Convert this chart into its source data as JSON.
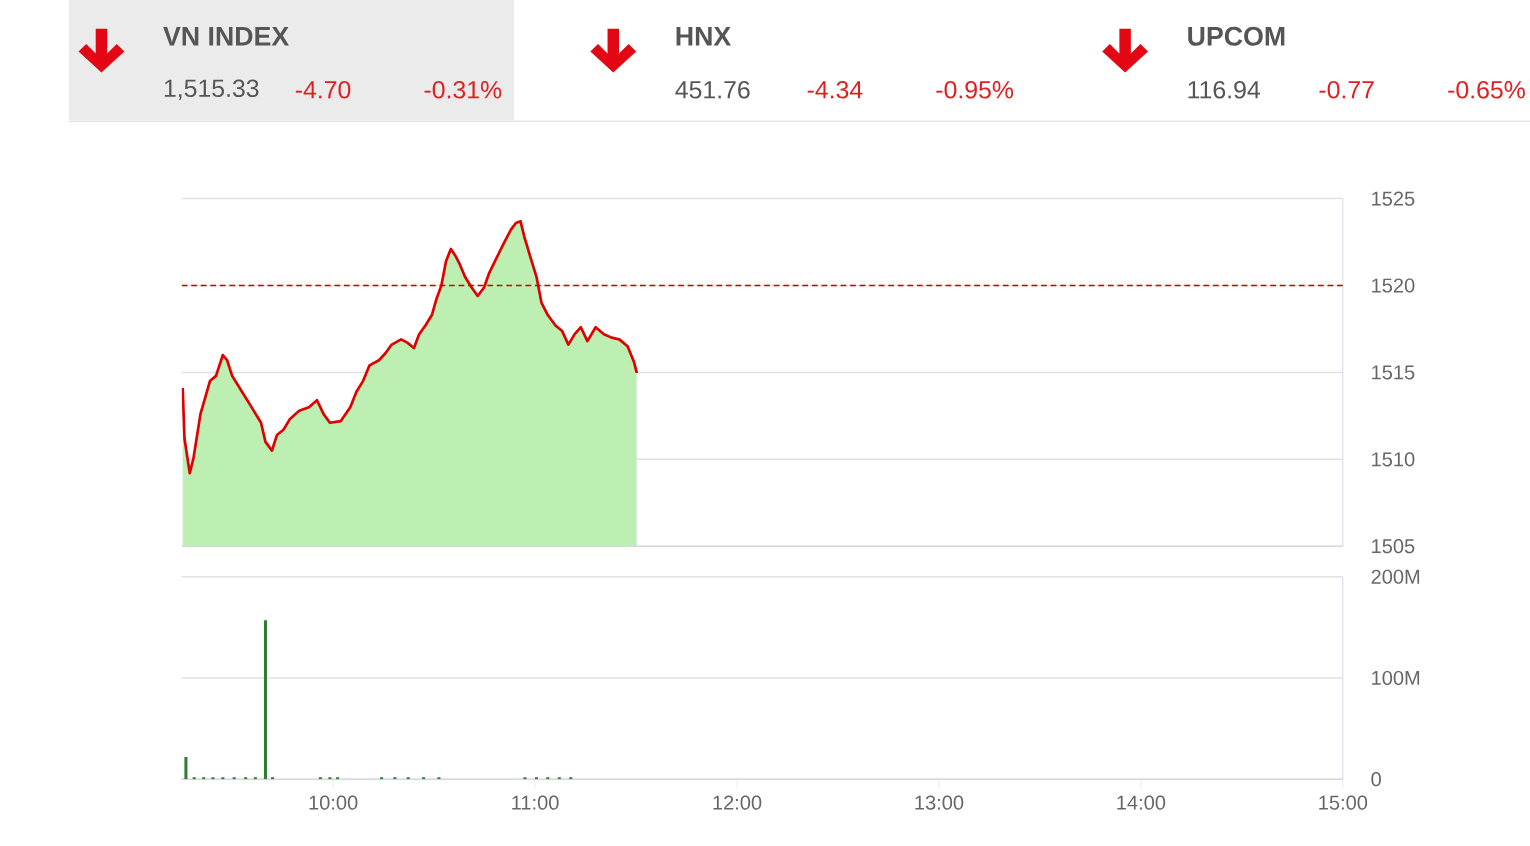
{
  "chart_data": [
    {
      "type": "other",
      "title": "VN INDEX",
      "annotations": [
        "1,515.33",
        "-4.70",
        "-0.31%"
      ]
    },
    {
      "type": "other",
      "title": "HNX",
      "annotations": [
        "451.76",
        "-4.34",
        "-0.95%"
      ]
    },
    {
      "type": "other",
      "title": "UPCOM",
      "annotations": [
        "116.94",
        "-0.77",
        "-0.65%"
      ]
    },
    {
      "type": "area",
      "x": [
        9.255,
        9.264,
        9.29,
        9.309,
        9.343,
        9.39,
        9.42,
        9.454,
        9.475,
        9.5,
        9.548,
        9.596,
        9.643,
        9.665,
        9.697,
        9.722,
        9.754,
        9.785,
        9.832,
        9.88,
        9.92,
        9.953,
        9.984,
        10.038,
        10.085,
        10.116,
        10.148,
        10.18,
        10.227,
        10.259,
        10.29,
        10.337,
        10.369,
        10.4,
        10.426,
        10.457,
        10.489,
        10.511,
        10.536,
        10.559,
        10.583,
        10.606,
        10.628,
        10.653,
        10.685,
        10.716,
        10.748,
        10.772,
        10.81,
        10.848,
        10.88,
        10.905,
        10.928,
        10.947,
        10.975,
        11.007,
        11.032,
        11.063,
        11.101,
        11.133,
        11.165,
        11.196,
        11.227,
        11.259,
        11.3,
        11.341,
        11.379,
        11.417,
        11.458,
        11.49,
        11.503
      ],
      "series": [
        {
          "color": "#bdeeb2",
          "values": [
            1514.1,
            1511.2,
            1509.2,
            1510.1,
            1512.6,
            1514.5,
            1514.8,
            1516.0,
            1515.7,
            1514.8,
            1513.9,
            1513.0,
            1512.1,
            1511.0,
            1510.5,
            1511.4,
            1511.7,
            1512.3,
            1512.8,
            1513.0,
            1513.4,
            1512.6,
            1512.1,
            1512.2,
            1513.0,
            1513.9,
            1514.5,
            1515.4,
            1515.7,
            1516.1,
            1516.6,
            1516.9,
            1516.7,
            1516.4,
            1517.2,
            1517.7,
            1518.3,
            1519.2,
            1520.0,
            1521.4,
            1522.1,
            1521.7,
            1521.2,
            1520.5,
            1519.9,
            1519.4,
            1519.9,
            1520.7,
            1521.6,
            1522.5,
            1523.2,
            1523.6,
            1523.7,
            1522.8,
            1521.7,
            1520.5,
            1519.0,
            1518.3,
            1517.7,
            1517.4,
            1516.6,
            1517.2,
            1517.6,
            1516.8,
            1517.6,
            1517.2,
            1517.0,
            1516.9,
            1516.5,
            1515.6,
            1515.0
          ]
        }
      ],
      "xlim": [
        9.25,
        15
      ],
      "ylim": [
        1505,
        1525
      ],
      "yticks": [
        1505,
        1510,
        1515,
        1520,
        1525
      ],
      "grid": "y",
      "tick_labels": "y",
      "ref_lines": [
        {
          "axis": "y",
          "value": 1520,
          "color": "#cc0000",
          "line_style": "dashed"
        }
      ]
    },
    {
      "type": "bar",
      "x": [
        9.271,
        9.312,
        9.359,
        9.405,
        9.454,
        9.51,
        9.567,
        9.615,
        9.665,
        9.7,
        9.937,
        9.984,
        10.022,
        10.24,
        10.306,
        10.372,
        10.448,
        10.524,
        10.95,
        11.007,
        11.063,
        11.12,
        11.177
      ],
      "values": [
        22,
        2,
        2,
        2,
        2,
        2,
        2,
        2,
        157,
        2,
        2,
        2,
        2,
        2,
        2,
        2,
        2,
        2,
        2,
        2,
        2,
        2,
        2
      ],
      "color": "#2e7d32",
      "xlim": [
        9.25,
        15
      ],
      "xticks": [
        {
          "value": 10,
          "label": "10:00"
        },
        {
          "value": 11,
          "label": "11:00"
        },
        {
          "value": 12,
          "label": "12:00"
        },
        {
          "value": 13,
          "label": "13:00"
        },
        {
          "value": 14,
          "label": "14:00"
        },
        {
          "value": 15,
          "label": "15:00"
        }
      ],
      "ylim": [
        0,
        200
      ],
      "yticks": [
        0,
        {
          "value": 100,
          "label": "100M"
        },
        {
          "value": 200,
          "label": "200M"
        }
      ],
      "grid": "y"
    }
  ]
}
